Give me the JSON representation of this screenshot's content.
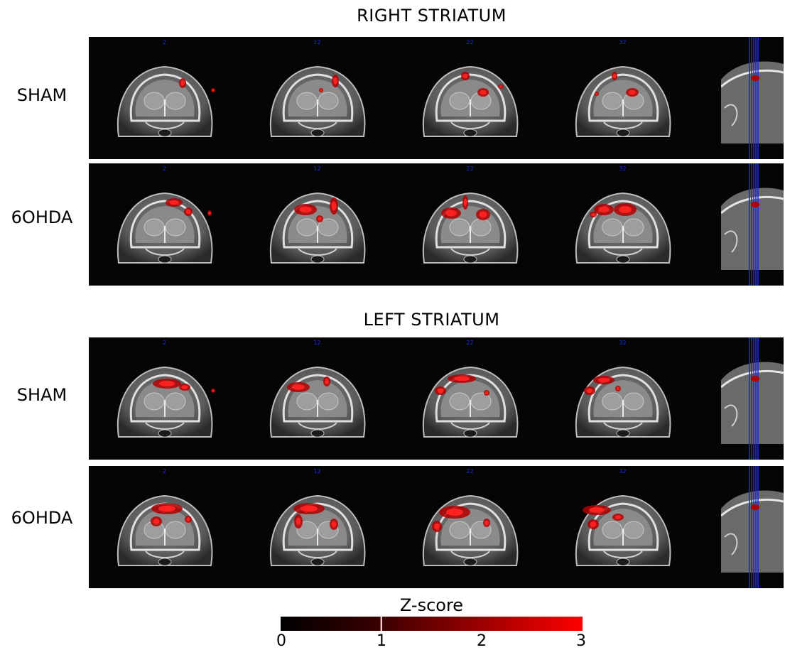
{
  "sections": [
    {
      "title": "RIGHT STRIATUM",
      "rows": [
        {
          "label": "SHAM",
          "blobs": "r_sham"
        },
        {
          "label": "6OHDA",
          "blobs": "r_ohda"
        }
      ]
    },
    {
      "title": "LEFT STRIATUM",
      "rows": [
        {
          "label": "SHAM",
          "blobs": "l_sham"
        },
        {
          "label": "6OHDA",
          "blobs": "l_ohda"
        }
      ]
    }
  ],
  "slice_labels": [
    "2",
    "12",
    "22",
    "32"
  ],
  "colorbar": {
    "title": "Z-score",
    "ticks": [
      "0",
      "1",
      "2",
      "3"
    ],
    "range": [
      0,
      3
    ],
    "threshold": 1,
    "colors": [
      "#000000",
      "#ff0000"
    ]
  },
  "colors": {
    "background": "#050505",
    "overlay": "#ff1a1a",
    "slice_marker": "#1a2bd9"
  },
  "icons": [
    "mri-coronal-slice-image",
    "mri-sagittal-locator-image"
  ]
}
